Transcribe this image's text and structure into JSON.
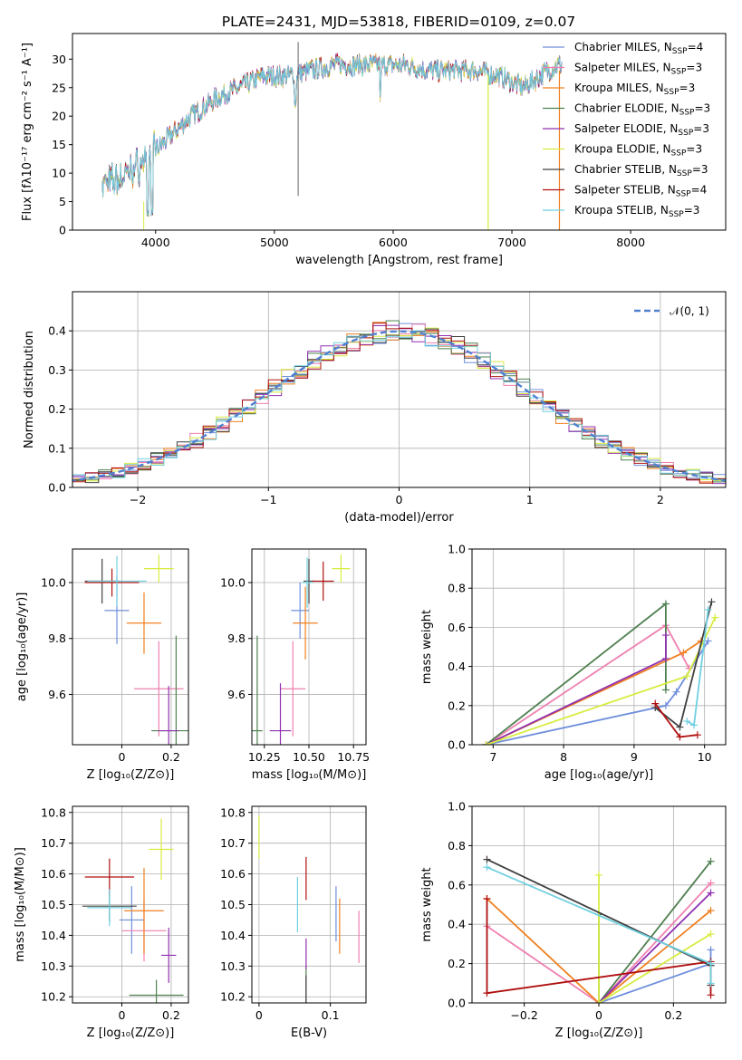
{
  "colors": [
    "#6f8fdc",
    "#f080b0",
    "#f08020",
    "#4f8050",
    "#9030b0",
    "#d8ec40",
    "#404040",
    "#b01010",
    "#70d0e0"
  ],
  "chart_data": [
    {
      "id": "spectrum",
      "type": "line",
      "title": "PLATE=2431, MJD=53818, FIBERID=0109, z=0.07",
      "xlabel": "wavelength [Angstrom, rest frame]",
      "ylabel": "Flux [fλ10⁻¹⁷ erg cm⁻² s⁻¹ A⁻¹]",
      "xlim": [
        3300,
        8800
      ],
      "ylim": [
        0,
        34.5
      ],
      "xticks": [
        4000,
        5000,
        6000,
        7000,
        8000
      ],
      "yticks": [
        0,
        5,
        10,
        15,
        20,
        25,
        30
      ],
      "grid": false,
      "legend": "top-right",
      "spectrum_points": {
        "x": [
          3550,
          3700,
          3900,
          4100,
          4300,
          4500,
          4700,
          4900,
          5100,
          5300,
          5500,
          5700,
          5900,
          6100,
          6300,
          6500,
          6700,
          6900,
          7100,
          7300,
          7400
        ],
        "y": [
          8,
          9,
          12,
          16,
          20,
          23,
          25,
          27,
          27,
          28,
          29,
          29,
          29,
          29,
          28,
          28,
          28,
          27,
          25,
          28,
          29
        ]
      },
      "legend_entries": [
        "Chabrier MILES, N_SSP=4",
        "Salpeter MILES, N_SSP=3",
        "Kroupa MILES, N_SSP=3",
        "Chabrier ELODIE, N_SSP=3",
        "Salpeter ELODIE, N_SSP=3",
        "Kroupa ELODIE, N_SSP=3",
        "Chabrier STELIB, N_SSP=3",
        "Salpeter STELIB, N_SSP=4",
        "Kroupa STELIB, N_SSP=3"
      ]
    },
    {
      "id": "residuals",
      "type": "histogram",
      "xlabel": "(data-model)/error",
      "ylabel": "Normed distribution",
      "xlim": [
        -2.5,
        2.5
      ],
      "ylim": [
        0,
        0.5
      ],
      "xticks": [
        -2,
        -1,
        0,
        1,
        2
      ],
      "yticks": [
        0.0,
        0.1,
        0.2,
        0.3,
        0.4
      ],
      "grid": true,
      "legend": "top-right",
      "legend_label": "𝒩(0, 1)"
    },
    {
      "id": "age_vs_Z",
      "type": "scatter",
      "xlabel": "Z [log₁₀(Z/Z⊙)]",
      "ylabel": "age  [log₁₀(age/yr)]",
      "xlim": [
        -0.2,
        0.27
      ],
      "ylim": [
        9.42,
        10.12
      ],
      "xticks": [
        0.0,
        0.2
      ],
      "yticks": [
        9.6,
        9.8,
        10.0
      ],
      "grid": true,
      "points": [
        {
          "x": -0.02,
          "y": 9.9,
          "xerr": 0.05,
          "yerr": 0.12
        },
        {
          "x": 0.15,
          "y": 9.62,
          "xerr": 0.1,
          "yerr": 0.17
        },
        {
          "x": 0.09,
          "y": 9.855,
          "xerr": 0.07,
          "yerr": 0.11
        },
        {
          "x": 0.22,
          "y": 9.47,
          "xerr": 0.1,
          "yerr": 0.34
        },
        {
          "x": 0.19,
          "y": 9.47,
          "xerr": 0.04,
          "yerr": 0.16
        },
        {
          "x": 0.15,
          "y": 10.05,
          "xerr": 0.06,
          "yerr": 0.05
        },
        {
          "x": -0.08,
          "y": 10.005,
          "xerr": 0.07,
          "yerr": 0.08
        },
        {
          "x": -0.04,
          "y": 10.0,
          "xerr": 0.11,
          "yerr": 0.05
        },
        {
          "x": -0.02,
          "y": 10.005,
          "xerr": 0.12,
          "yerr": 0.09
        }
      ]
    },
    {
      "id": "age_vs_mass",
      "type": "scatter",
      "xlabel": "mass [log₁₀(M/M⊙)]",
      "ylabel": "",
      "xlim": [
        10.18,
        10.82
      ],
      "ylim": [
        9.42,
        10.12
      ],
      "xticks": [
        10.25,
        10.5,
        10.75
      ],
      "yticks": [
        9.6,
        9.8,
        10.0
      ],
      "grid": true,
      "points": [
        {
          "x": 10.45,
          "y": 9.9,
          "xerr": 0.05,
          "yerr": 0.1
        },
        {
          "x": 10.41,
          "y": 9.62,
          "xerr": 0.07,
          "yerr": 0.17
        },
        {
          "x": 10.48,
          "y": 9.855,
          "xerr": 0.07,
          "yerr": 0.13
        },
        {
          "x": 10.21,
          "y": 9.47,
          "xerr": 0.03,
          "yerr": 0.34
        },
        {
          "x": 10.34,
          "y": 9.47,
          "xerr": 0.06,
          "yerr": 0.17
        },
        {
          "x": 10.68,
          "y": 10.05,
          "xerr": 0.05,
          "yerr": 0.05
        },
        {
          "x": 10.5,
          "y": 10.005,
          "xerr": 0.03,
          "yerr": 0.08
        },
        {
          "x": 10.58,
          "y": 10.005,
          "xerr": 0.06,
          "yerr": 0.07
        },
        {
          "x": 10.49,
          "y": 10.0,
          "xerr": 0.03,
          "yerr": 0.09
        }
      ]
    },
    {
      "id": "weight_vs_age",
      "type": "line",
      "xlabel": "age  [log₁₀(age/yr)]",
      "ylabel": "mass weight",
      "xlim": [
        6.7,
        10.3
      ],
      "ylim": [
        0,
        1.0
      ],
      "xticks": [
        7,
        8,
        9,
        10
      ],
      "yticks": [
        0.0,
        0.2,
        0.4,
        0.6,
        0.8,
        1.0
      ],
      "grid": true,
      "series": [
        {
          "x": [
            6.9,
            9.45,
            9.6,
            10.05
          ],
          "y": [
            0,
            0.2,
            0.27,
            0.53
          ]
        },
        {
          "x": [
            6.9,
            9.45,
            9.78
          ],
          "y": [
            0,
            0.61,
            0.39
          ]
        },
        {
          "x": [
            6.9,
            9.7,
            9.95
          ],
          "y": [
            0,
            0.47,
            0.53
          ]
        },
        {
          "x": [
            6.9,
            9.45,
            9.45
          ],
          "y": [
            0,
            0.72,
            0.28
          ]
        },
        {
          "x": [
            6.9,
            9.45,
            9.45
          ],
          "y": [
            0,
            0.44,
            0.56
          ]
        },
        {
          "x": [
            6.9,
            9.75,
            10.15
          ],
          "y": [
            0,
            0.35,
            0.65
          ]
        },
        {
          "x": [
            9.3,
            9.65,
            10.1
          ],
          "y": [
            0.19,
            0.09,
            0.73
          ]
        },
        {
          "x": [
            9.3,
            9.65,
            9.9
          ],
          "y": [
            0.21,
            0.04,
            0.05
          ]
        },
        {
          "x": [
            9.75,
            9.85,
            10.05
          ],
          "y": [
            0.12,
            0.1,
            0.69
          ]
        }
      ]
    },
    {
      "id": "mass_vs_Z",
      "type": "scatter",
      "xlabel": "Z [log₁₀(Z/Z⊙)]",
      "ylabel": "mass [log₁₀(M/M⊙)]",
      "xlim": [
        -0.2,
        0.27
      ],
      "ylim": [
        10.18,
        10.82
      ],
      "xticks": [
        0.0,
        0.2
      ],
      "yticks": [
        10.2,
        10.3,
        10.4,
        10.5,
        10.6,
        10.7,
        10.8
      ],
      "grid": true,
      "points": [
        {
          "x": 0.04,
          "y": 10.45,
          "xerr": 0.05,
          "yerr": 0.11
        },
        {
          "x": 0.09,
          "y": 10.415,
          "xerr": 0.09,
          "yerr": 0.1
        },
        {
          "x": 0.09,
          "y": 10.48,
          "xerr": 0.08,
          "yerr": 0.14
        },
        {
          "x": 0.14,
          "y": 10.205,
          "xerr": 0.11,
          "yerr": 0.05
        },
        {
          "x": 0.19,
          "y": 10.335,
          "xerr": 0.03,
          "yerr": 0.09
        },
        {
          "x": 0.16,
          "y": 10.68,
          "xerr": 0.05,
          "yerr": 0.1
        },
        {
          "x": -0.05,
          "y": 10.495,
          "xerr": 0.11,
          "yerr": 0.05
        },
        {
          "x": -0.05,
          "y": 10.59,
          "xerr": 0.1,
          "yerr": 0.06
        },
        {
          "x": -0.05,
          "y": 10.49,
          "xerr": 0.09,
          "yerr": 0.06
        }
      ]
    },
    {
      "id": "mass_vs_EBV",
      "type": "scatter",
      "xlabel": "E(B-V)",
      "ylabel": "",
      "xlim": [
        -0.01,
        0.15
      ],
      "ylim": [
        10.18,
        10.82
      ],
      "xticks": [
        0.0,
        0.1
      ],
      "yticks": [
        10.2,
        10.3,
        10.4,
        10.5,
        10.6,
        10.7,
        10.8
      ],
      "grid": true,
      "points": [
        {
          "x": 0.108,
          "y": 10.47,
          "yerr": 0.09
        },
        {
          "x": 0.14,
          "y": 10.395,
          "yerr": 0.085
        },
        {
          "x": 0.113,
          "y": 10.43,
          "yerr": 0.09
        },
        {
          "x": 0.066,
          "y": 10.24,
          "yerr": 0.06
        },
        {
          "x": 0.066,
          "y": 10.34,
          "yerr": 0.05
        },
        {
          "x": 0.0,
          "y": 10.72,
          "yerr": 0.07
        },
        {
          "x": 0.066,
          "y": 10.22,
          "yerr": 0.05
        },
        {
          "x": 0.066,
          "y": 10.585,
          "yerr": 0.07
        },
        {
          "x": 0.054,
          "y": 10.5,
          "yerr": 0.09
        }
      ]
    },
    {
      "id": "weight_vs_Z",
      "type": "line",
      "xlabel": "Z [log₁₀(Z/Z⊙)]",
      "ylabel": "mass weight",
      "xlim": [
        -0.34,
        0.34
      ],
      "ylim": [
        0,
        1.0
      ],
      "xticks": [
        -0.2,
        0.0,
        0.2
      ],
      "yticks": [
        0.0,
        0.2,
        0.4,
        0.6,
        0.8,
        1.0
      ],
      "grid": true,
      "series": [
        {
          "x": [
            0.0,
            0.3,
            0.3
          ],
          "y": [
            0,
            0.2,
            0.27
          ]
        },
        {
          "x": [
            -0.3,
            0.0,
            0.3
          ],
          "y": [
            0.39,
            0,
            0.61
          ]
        },
        {
          "x": [
            -0.3,
            0.0,
            0.3
          ],
          "y": [
            0.53,
            0,
            0.47
          ]
        },
        {
          "x": [
            0.0,
            0.0,
            0.3
          ],
          "y": [
            0.45,
            0,
            0.72
          ]
        },
        {
          "x": [
            0.0,
            0.3
          ],
          "y": [
            0,
            0.56
          ]
        },
        {
          "x": [
            0.0,
            0.0,
            0.3
          ],
          "y": [
            0.65,
            0,
            0.35
          ]
        },
        {
          "x": [
            -0.3,
            0.3,
            0.3
          ],
          "y": [
            0.73,
            0.19,
            0.09
          ]
        },
        {
          "x": [
            -0.3,
            -0.3,
            0.3,
            0.3
          ],
          "y": [
            0.53,
            0.05,
            0.21,
            0.04
          ]
        },
        {
          "x": [
            -0.3,
            0.3,
            0.3
          ],
          "y": [
            0.69,
            0.2,
            0.1
          ]
        }
      ]
    }
  ]
}
